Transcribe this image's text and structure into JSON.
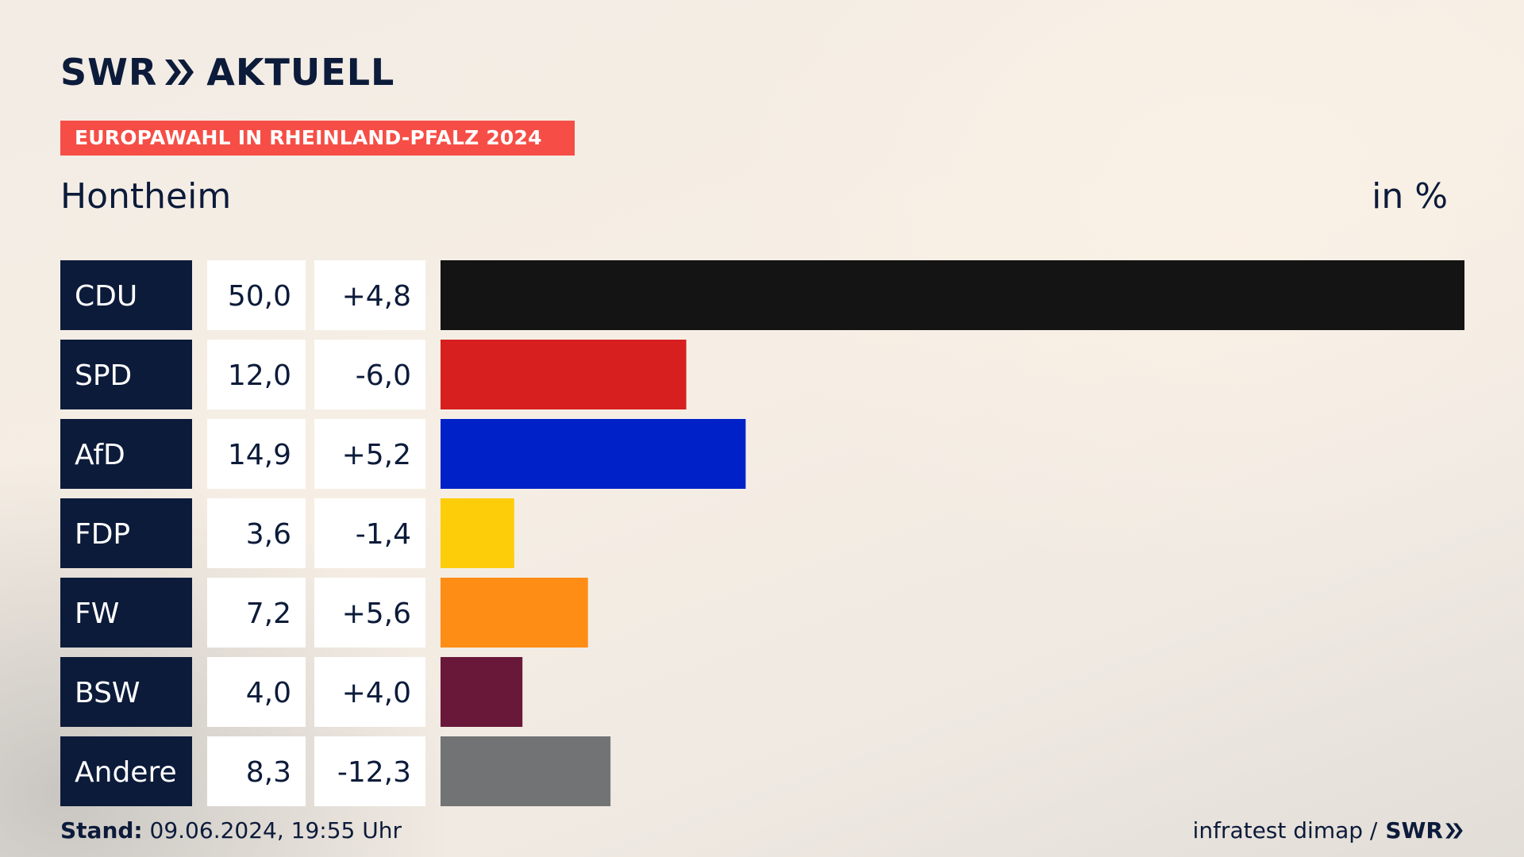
{
  "header": {
    "logo_text": "SWR",
    "logo_suffix": "AKTUELL",
    "banner": "EUROPAWAHL IN RHEINLAND-PFALZ 2024",
    "place": "Hontheim",
    "unit": "in %"
  },
  "footer": {
    "stand_label": "Stand:",
    "stand_value": "09.06.2024, 19:55 Uhr",
    "source": "infratest dimap /",
    "source_logo": "SWR"
  },
  "colors": {
    "label_bg": "#0c1b3a",
    "banner": "#f64e46"
  },
  "chart_data": {
    "type": "bar",
    "orientation": "horizontal",
    "categories": [
      "CDU",
      "SPD",
      "AfD",
      "FDP",
      "FW",
      "BSW",
      "Andere"
    ],
    "series": [
      {
        "values": [
          50.0,
          12.0,
          14.9,
          3.6,
          7.2,
          4.0,
          8.3
        ],
        "labels": [
          "50,0",
          "12,0",
          "14,9",
          "3,6",
          "7,2",
          "4,0",
          "8,3"
        ]
      }
    ],
    "change": {
      "values": [
        4.8,
        -6.0,
        5.2,
        -1.4,
        5.6,
        4.0,
        -12.3
      ],
      "labels": [
        "+4,8",
        "-6,0",
        "+5,2",
        "-1,4",
        "+5,6",
        "+4,0",
        "-12,3"
      ]
    },
    "colors": [
      "#141414",
      "#d81f1f",
      "#0021c8",
      "#fecd0a",
      "#fe8d16",
      "#6a1839",
      "#727374"
    ],
    "xlim": [
      0,
      50
    ],
    "grid": false,
    "legend": "none"
  }
}
